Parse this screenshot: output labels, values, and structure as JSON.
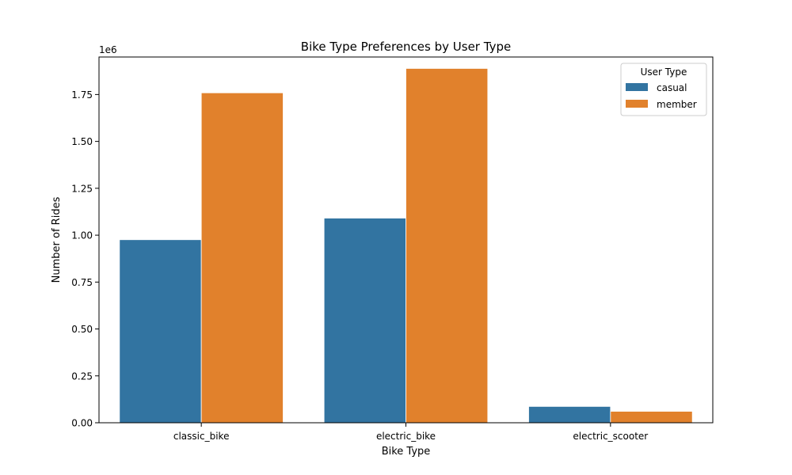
{
  "chart_data": {
    "type": "bar",
    "title": "Bike Type Preferences by User Type",
    "xlabel": "Bike Type",
    "ylabel": "Number of Rides",
    "offset_label": "1e6",
    "categories": [
      "classic_bike",
      "electric_bike",
      "electric_scooter"
    ],
    "series": [
      {
        "name": "casual",
        "color": "#3274a1",
        "values": [
          976000,
          1091000,
          87000
        ]
      },
      {
        "name": "member",
        "color": "#e1812c",
        "values": [
          1759000,
          1889000,
          61000
        ]
      }
    ],
    "ylim": [
      0,
      1950000
    ],
    "yticks": [
      0,
      250000,
      500000,
      750000,
      1000000,
      1250000,
      1500000,
      1750000
    ],
    "ytick_labels": [
      "0.00",
      "0.25",
      "0.50",
      "0.75",
      "1.00",
      "1.25",
      "1.50",
      "1.75"
    ],
    "legend": {
      "title": "User Type",
      "position": "top-right"
    },
    "grid": false
  }
}
